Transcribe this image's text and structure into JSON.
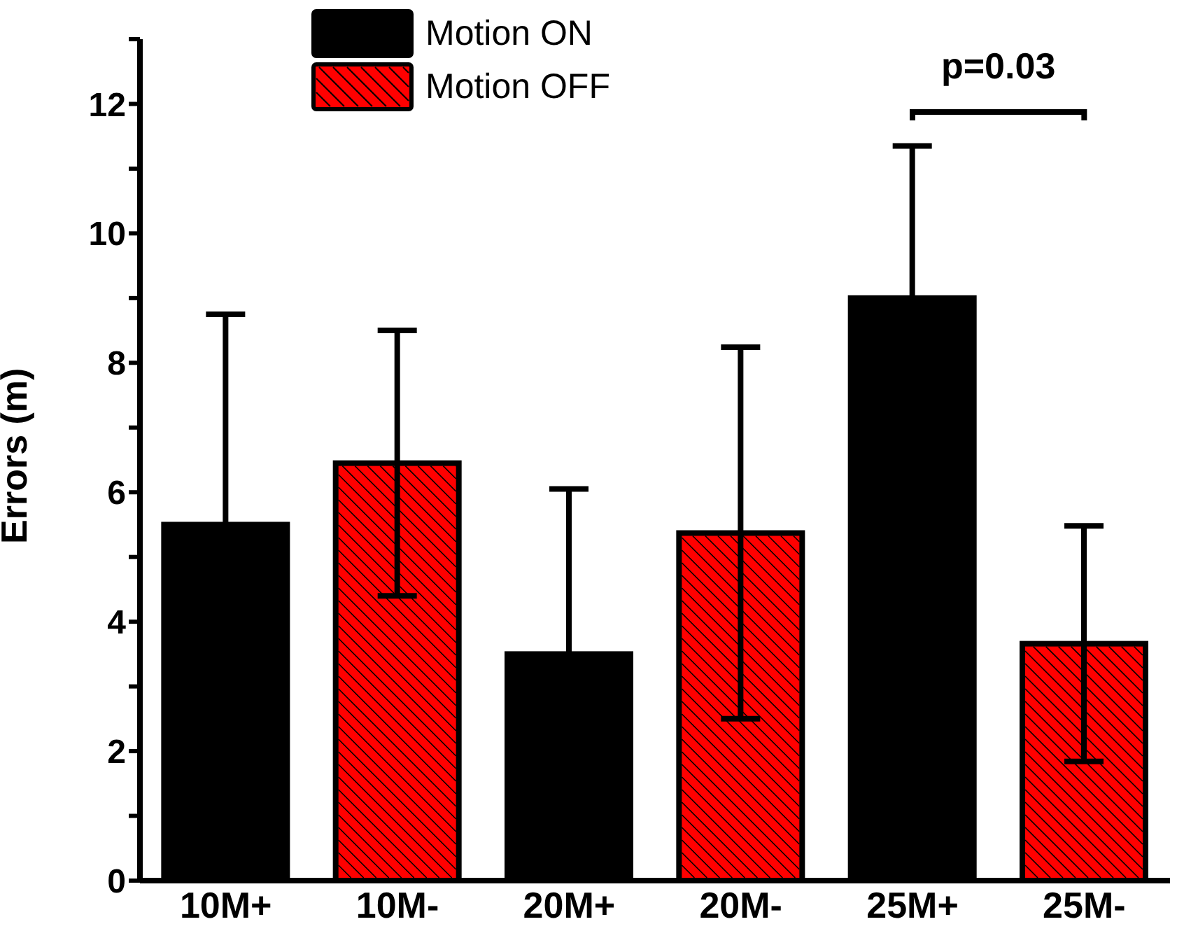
{
  "chart_data": {
    "type": "bar",
    "ylabel": "Errors (m)",
    "categories": [
      "10M+",
      "10M-",
      "20M+",
      "20M-",
      "25M+",
      "25M-"
    ],
    "series": [
      {
        "name": "Motion ON",
        "color": "#000000",
        "values": [
          5.5,
          null,
          3.5,
          null,
          9.0,
          null
        ],
        "errors": [
          3.25,
          null,
          2.55,
          null,
          2.35,
          null
        ]
      },
      {
        "name": "Motion OFF",
        "color": "#ff0000",
        "values": [
          null,
          6.45,
          null,
          5.37,
          null,
          3.66
        ],
        "errors": [
          null,
          2.05,
          null,
          2.87,
          null,
          1.82
        ]
      }
    ],
    "ylim": [
      0,
      13
    ],
    "yticks": [
      0,
      {
        "value": 1,
        "label": null
      },
      2,
      {
        "value": 3,
        "label": null
      },
      4,
      {
        "value": 5,
        "label": null
      },
      6,
      {
        "value": 7,
        "label": null
      },
      8,
      {
        "value": 9,
        "label": null
      },
      10,
      {
        "value": 11,
        "label": null
      },
      12,
      {
        "value": 13,
        "label": null
      }
    ],
    "annotations": [
      "p=0.03"
    ],
    "legend": "top",
    "grid": false
  }
}
